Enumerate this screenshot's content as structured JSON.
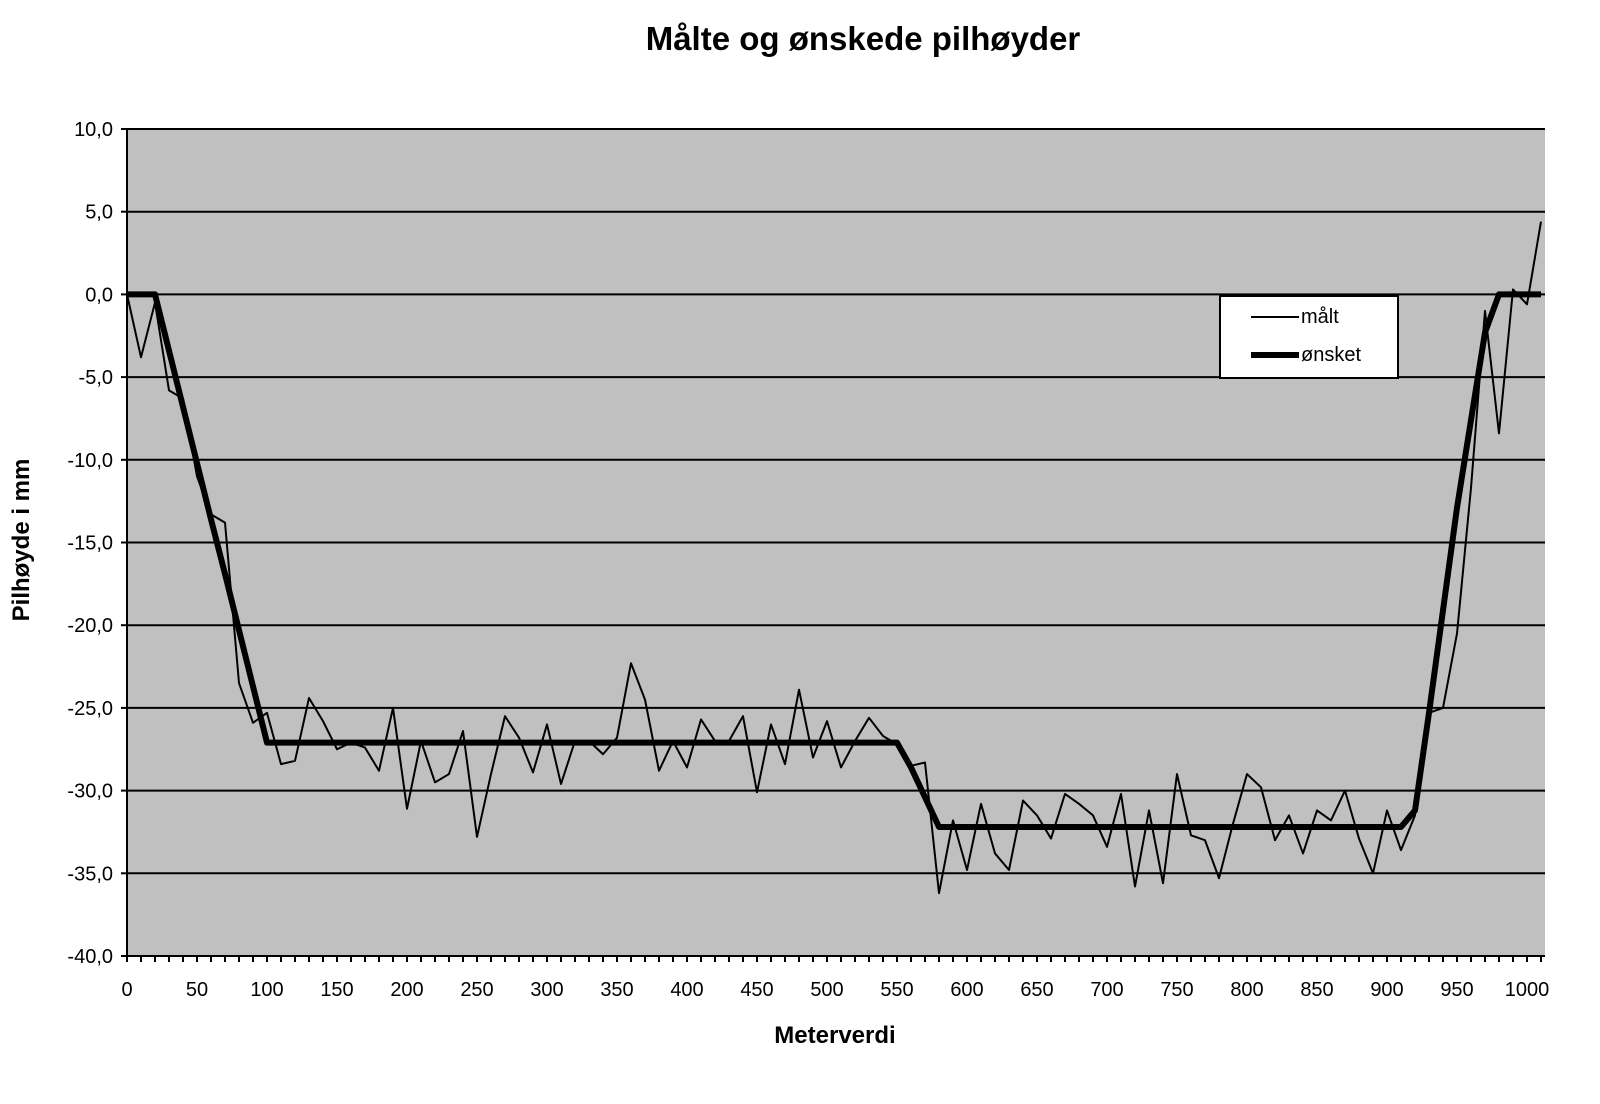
{
  "chart_data": {
    "type": "line",
    "title": "Målte og ønskede pilhøyder",
    "xlabel": "Meterverdi",
    "ylabel": "Pilhøyde i mm",
    "xlim": [
      0,
      1010
    ],
    "ylim": [
      -40,
      10
    ],
    "x_ticks": [
      "0",
      "50",
      "100",
      "150",
      "200",
      "250",
      "300",
      "350",
      "400",
      "450",
      "500",
      "550",
      "600",
      "650",
      "700",
      "750",
      "800",
      "850",
      "900",
      "950",
      "1000"
    ],
    "y_ticks": [
      "10,0",
      "5,0",
      "0,0",
      "-5,0",
      "-10,0",
      "-15,0",
      "-20,0",
      "-25,0",
      "-30,0",
      "-35,0",
      "-40,0"
    ],
    "grid": "horizontal",
    "legend_position": "upper right (inside plot)",
    "plot_background": "#C0C0C0",
    "x": [
      0,
      10,
      20,
      30,
      40,
      50,
      60,
      70,
      80,
      90,
      100,
      110,
      120,
      130,
      140,
      150,
      160,
      170,
      180,
      190,
      200,
      210,
      220,
      230,
      240,
      250,
      260,
      270,
      280,
      290,
      300,
      310,
      320,
      330,
      340,
      350,
      360,
      370,
      380,
      390,
      400,
      410,
      420,
      430,
      440,
      450,
      460,
      470,
      480,
      490,
      500,
      510,
      520,
      530,
      540,
      550,
      560,
      570,
      580,
      590,
      600,
      610,
      620,
      630,
      640,
      650,
      660,
      670,
      680,
      690,
      700,
      710,
      720,
      730,
      740,
      750,
      760,
      770,
      780,
      790,
      800,
      810,
      820,
      830,
      840,
      850,
      860,
      870,
      880,
      890,
      900,
      910,
      920,
      930,
      940,
      950,
      960,
      970,
      980,
      990,
      1000,
      1010
    ],
    "series": [
      {
        "name": "målt",
        "style": "thin",
        "values": [
          0,
          -3.8,
          -0.5,
          -5.8,
          -6.3,
          -11.0,
          -13.3,
          -13.8,
          -23.5,
          -25.9,
          -25.3,
          -28.4,
          -28.2,
          -24.4,
          -25.8,
          -27.5,
          -27.1,
          -27.4,
          -28.8,
          -25.0,
          -31.1,
          -27.0,
          -29.5,
          -29.0,
          -26.4,
          -32.8,
          -29.0,
          -25.5,
          -26.8,
          -28.9,
          -26.0,
          -29.6,
          -27.0,
          -27.0,
          -27.8,
          -26.8,
          -22.3,
          -24.5,
          -28.8,
          -27.0,
          -28.6,
          -25.7,
          -27.0,
          -27.0,
          -25.5,
          -30.1,
          -26.0,
          -28.4,
          -23.9,
          -28.0,
          -25.8,
          -28.6,
          -27.0,
          -25.6,
          -26.7,
          -27.2,
          -28.5,
          -28.3,
          -36.2,
          -31.8,
          -34.8,
          -30.8,
          -33.8,
          -34.8,
          -30.6,
          -31.5,
          -32.9,
          -30.2,
          -30.8,
          -31.5,
          -33.4,
          -30.2,
          -35.8,
          -31.2,
          -35.6,
          -29.0,
          -32.7,
          -33.0,
          -35.3,
          -32.0,
          -29.0,
          -29.8,
          -33.0,
          -31.5,
          -33.8,
          -31.2,
          -31.8,
          -30.0,
          -32.9,
          -35.0,
          -31.2,
          -33.6,
          -31.5,
          -25.3,
          -25.0,
          -20.5,
          -11.7,
          -1.0,
          -8.4,
          0.3,
          -0.6,
          4.4
        ]
      },
      {
        "name": "ønsket",
        "style": "thick",
        "values": [
          0,
          0,
          0,
          -3.4,
          -6.8,
          -10.2,
          -13.6,
          -16.9,
          -20.3,
          -23.7,
          -27.1,
          -27.1,
          -27.1,
          -27.1,
          -27.1,
          -27.1,
          -27.1,
          -27.1,
          -27.1,
          -27.1,
          -27.1,
          -27.1,
          -27.1,
          -27.1,
          -27.1,
          -27.1,
          -27.1,
          -27.1,
          -27.1,
          -27.1,
          -27.1,
          -27.1,
          -27.1,
          -27.1,
          -27.1,
          -27.1,
          -27.1,
          -27.1,
          -27.1,
          -27.1,
          -27.1,
          -27.1,
          -27.1,
          -27.1,
          -27.1,
          -27.1,
          -27.1,
          -27.1,
          -27.1,
          -27.1,
          -27.1,
          -27.1,
          -27.1,
          -27.1,
          -27.1,
          -27.1,
          -28.6,
          -30.4,
          -32.2,
          -32.2,
          -32.2,
          -32.2,
          -32.2,
          -32.2,
          -32.2,
          -32.2,
          -32.2,
          -32.2,
          -32.2,
          -32.2,
          -32.2,
          -32.2,
          -32.2,
          -32.2,
          -32.2,
          -32.2,
          -32.2,
          -32.2,
          -32.2,
          -32.2,
          -32.2,
          -32.2,
          -32.2,
          -32.2,
          -32.2,
          -32.2,
          -32.2,
          -32.2,
          -32.2,
          -32.2,
          -32.2,
          -32.2,
          -31.2,
          -25.3,
          -19.1,
          -12.9,
          -7.6,
          -2.3,
          0,
          0,
          0,
          0
        ]
      }
    ]
  },
  "legend": {
    "items": [
      {
        "label": "målt"
      },
      {
        "label": "ønsket"
      }
    ]
  }
}
